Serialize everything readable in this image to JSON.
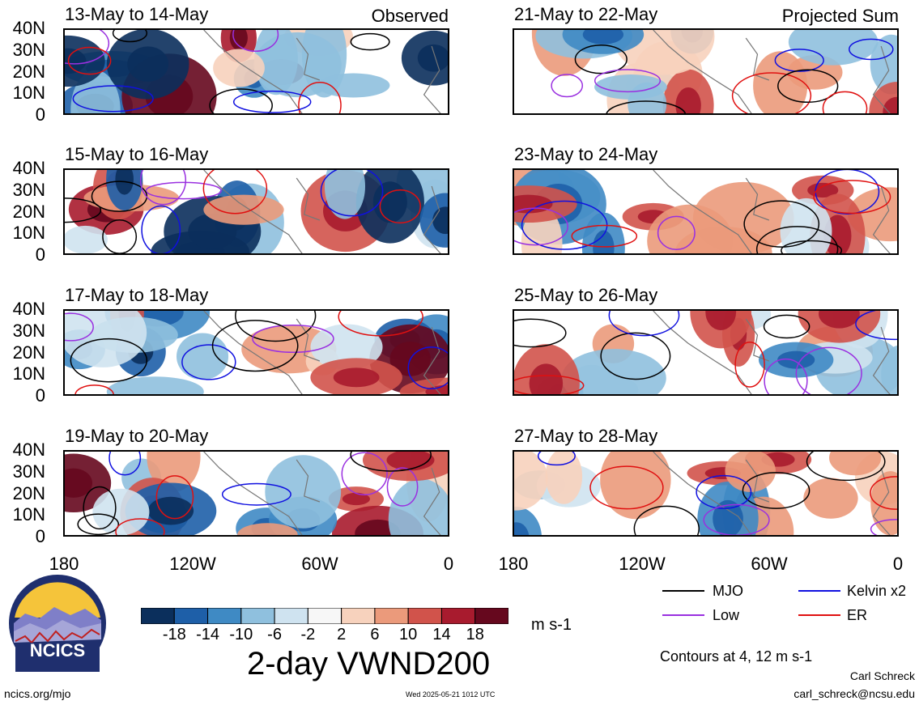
{
  "figure_title": "2-day VWND200",
  "columns": [
    {
      "header": "Observed",
      "panels": [
        "13-May to 14-May",
        "15-May to 16-May",
        "17-May to 18-May",
        "19-May to 20-May"
      ]
    },
    {
      "header": "Projected Sum",
      "panels": [
        "21-May to 22-May",
        "23-May to 24-May",
        "25-May to 26-May",
        "27-May to 28-May"
      ]
    }
  ],
  "lat_ticks": [
    "40N",
    "30N",
    "20N",
    "10N",
    "0"
  ],
  "lon_ticks": [
    "180",
    "120W",
    "60W",
    "0"
  ],
  "colorbar": {
    "labels": [
      "-18",
      "-14",
      "-10",
      "-6",
      "-2",
      "2",
      "6",
      "10",
      "14",
      "18"
    ],
    "colors": [
      "#0b2f5c",
      "#1e5fa8",
      "#3f8ac4",
      "#8fc0de",
      "#cfe3f0",
      "#f7f7f7",
      "#f7d2bd",
      "#eb9a7b",
      "#d1534b",
      "#a81b2e",
      "#66081e"
    ],
    "units": "m s-1"
  },
  "legend": {
    "items": [
      {
        "label": "MJO",
        "color": "#000000"
      },
      {
        "label": "Kelvin x2",
        "color": "#1010e0"
      },
      {
        "label": "Low",
        "color": "#9a30e0"
      },
      {
        "label": "ER",
        "color": "#e01010"
      }
    ],
    "contours_note": "Contours at 4, 12 m s-1"
  },
  "logo": {
    "text": "NCICS"
  },
  "footer": {
    "site": "ncics.org/mjo",
    "timestamp": "Wed 2025-05-21 1012 UTC",
    "author": "Carl Schreck",
    "email": "carl_schreck@ncsu.edu"
  }
}
